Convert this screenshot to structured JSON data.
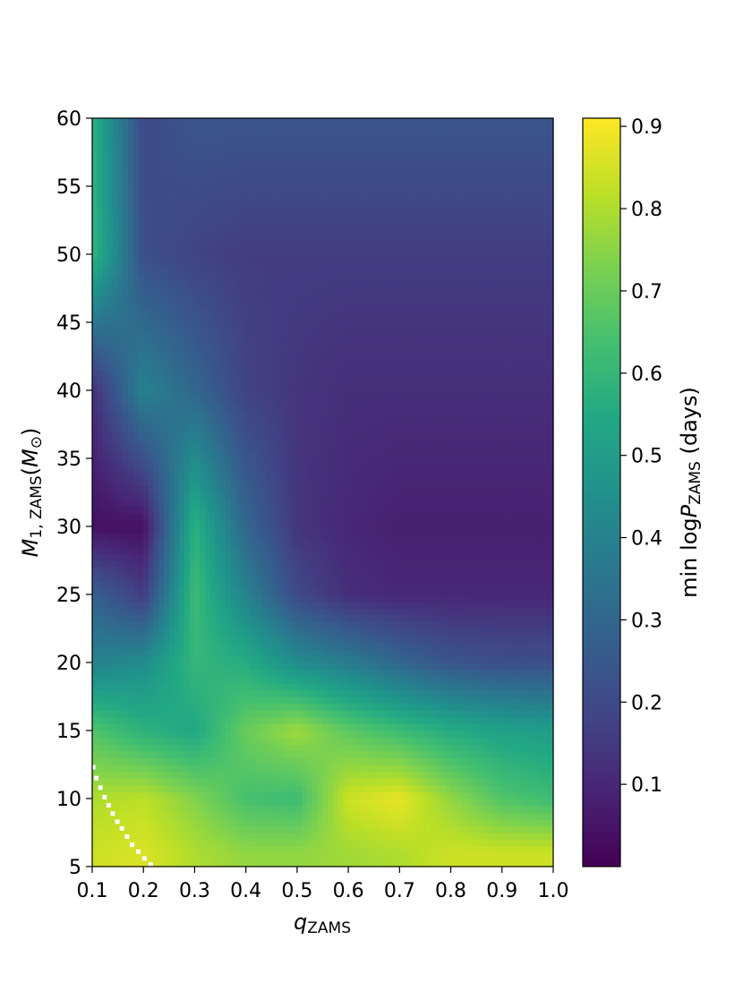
{
  "chart_data": {
    "type": "heatmap",
    "title": "",
    "x": {
      "label_main": "q",
      "label_sub": "ZAMS",
      "lim": [
        0.1,
        1.0
      ],
      "ticks": [
        0.1,
        0.2,
        0.3,
        0.4,
        0.5,
        0.6,
        0.7,
        0.8,
        0.9,
        1.0
      ],
      "tick_labels": [
        "0.1",
        "0.2",
        "0.3",
        "0.4",
        "0.5",
        "0.6",
        "0.7",
        "0.8",
        "0.9",
        "1.0"
      ]
    },
    "y": {
      "label_main": "M",
      "label_sub": "1, ZAMS",
      "label_unit_open": "(",
      "label_unit": "M",
      "label_unit_sub": "⊙",
      "label_unit_close": ")",
      "lim": [
        5,
        60
      ],
      "ticks": [
        5,
        10,
        15,
        20,
        25,
        30,
        35,
        40,
        45,
        50,
        55,
        60
      ],
      "tick_labels": [
        "5",
        "10",
        "15",
        "20",
        "25",
        "30",
        "35",
        "40",
        "45",
        "50",
        "55",
        "60"
      ]
    },
    "colorbar": {
      "label_prefix": "min log",
      "label_var": "P",
      "label_sub": "ZAMS",
      "label_suffix": " (days)",
      "lim": [
        0.0,
        0.91
      ],
      "ticks": [
        0.1,
        0.2,
        0.3,
        0.4,
        0.5,
        0.6,
        0.7,
        0.8,
        0.9
      ],
      "tick_labels": [
        "0.1",
        "0.2",
        "0.3",
        "0.4",
        "0.5",
        "0.6",
        "0.7",
        "0.8",
        "0.9"
      ],
      "colormap": "viridis",
      "placement": "right"
    },
    "grid": false,
    "cell_values_sampled": {
      "q": [
        0.1,
        0.2,
        0.3,
        0.4,
        0.5,
        0.6,
        0.7,
        0.8,
        0.9,
        1.0
      ],
      "M1": [
        6,
        10,
        15,
        20,
        25,
        30,
        40,
        50,
        60
      ],
      "min_logP": [
        [
          0.84,
          0.86,
          0.8,
          0.76,
          0.76,
          0.78,
          0.8,
          0.84,
          0.84,
          0.84
        ],
        [
          0.8,
          0.82,
          0.74,
          0.64,
          0.62,
          0.84,
          0.88,
          0.76,
          0.66,
          0.62
        ],
        [
          0.66,
          0.58,
          0.54,
          0.7,
          0.78,
          0.68,
          0.62,
          0.56,
          0.52,
          0.5
        ],
        [
          0.4,
          0.44,
          0.6,
          0.56,
          0.44,
          0.38,
          0.3,
          0.24,
          0.22,
          0.22
        ],
        [
          0.28,
          0.16,
          0.62,
          0.4,
          0.2,
          0.12,
          0.1,
          0.1,
          0.1,
          0.1
        ],
        [
          0.04,
          0.04,
          0.58,
          0.3,
          0.14,
          0.1,
          0.08,
          0.08,
          0.08,
          0.08
        ],
        [
          0.12,
          0.4,
          0.3,
          0.18,
          0.14,
          0.12,
          0.12,
          0.12,
          0.12,
          0.12
        ],
        [
          0.6,
          0.22,
          0.18,
          0.16,
          0.16,
          0.16,
          0.16,
          0.16,
          0.16,
          0.16
        ],
        [
          0.58,
          0.2,
          0.24,
          0.24,
          0.24,
          0.24,
          0.24,
          0.24,
          0.24,
          0.24
        ]
      ]
    },
    "markers": {
      "color": "#ffffff",
      "points": [
        [
          0.102,
          12.3
        ],
        [
          0.108,
          11.5
        ],
        [
          0.116,
          10.8
        ],
        [
          0.124,
          10.1
        ],
        [
          0.132,
          9.5
        ],
        [
          0.14,
          8.9
        ],
        [
          0.149,
          8.3
        ],
        [
          0.158,
          7.8
        ],
        [
          0.168,
          7.2
        ],
        [
          0.178,
          6.6
        ],
        [
          0.19,
          6.1
        ],
        [
          0.202,
          5.6
        ],
        [
          0.214,
          5.15
        ]
      ]
    }
  }
}
